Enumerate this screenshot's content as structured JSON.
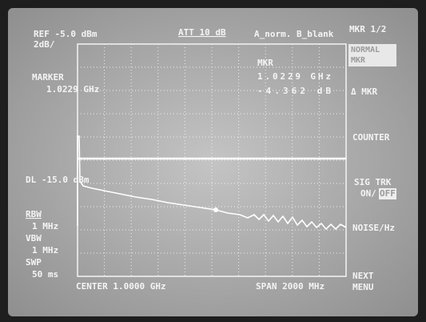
{
  "header": {
    "ref": "REF -5.0 dBm",
    "scale": "2dB/",
    "att": "ATT 10 dB",
    "trace_mode": "A_norm. B_blank",
    "menu_page": "MKR 1/2"
  },
  "left_panel": {
    "marker_label": "MARKER",
    "marker_freq": "1.0229 GHz",
    "display_line": "DL -15.0 dBm",
    "rbw_label": "RBW",
    "rbw": "1 MHz",
    "vbw_label": "VBW",
    "vbw": "1 MHz",
    "swp_label": "SWP",
    "swp": "50 ms"
  },
  "marker_readout": {
    "label": "MKR",
    "freq": "1.0229 GHz",
    "level": "-4.362 dB"
  },
  "softkeys": {
    "normal": "NORMAL",
    "mkr": "MKR",
    "delta_mkr": "Δ MKR",
    "counter": "COUNTER",
    "sig_trk": "SIG TRK",
    "on": "ON/",
    "off": "OFF",
    "noise": "NOISE/Hz",
    "next": "NEXT",
    "menu": "MENU"
  },
  "footer": {
    "center": "CENTER 1.0000 GHz",
    "span": "SPAN 2000 MHz"
  }
}
